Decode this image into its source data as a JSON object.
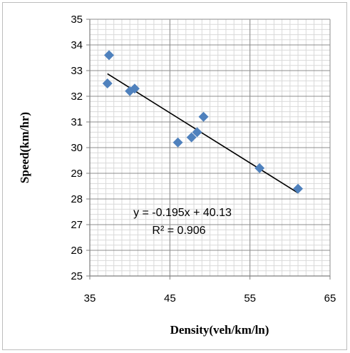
{
  "chart_data": {
    "type": "scatter",
    "title": "",
    "xlabel": "Density(veh/km/ln)",
    "ylabel": "Speed(km/hr)",
    "xlim": [
      35,
      65
    ],
    "ylim": [
      25,
      35
    ],
    "xticks": [
      35,
      45,
      55,
      65
    ],
    "yticks": [
      25,
      26,
      27,
      28,
      29,
      30,
      31,
      32,
      33,
      34,
      35
    ],
    "grid": true,
    "legend": "none",
    "marker_color": "#4f81bd",
    "trendline_color": "#000000",
    "series": [
      {
        "points": [
          {
            "x": 37.4,
            "y": 33.6
          },
          {
            "x": 37.2,
            "y": 32.5
          },
          {
            "x": 40.0,
            "y": 32.2
          },
          {
            "x": 40.6,
            "y": 32.3
          },
          {
            "x": 46.0,
            "y": 30.2
          },
          {
            "x": 47.7,
            "y": 30.4
          },
          {
            "x": 48.4,
            "y": 30.6
          },
          {
            "x": 49.2,
            "y": 31.2
          },
          {
            "x": 56.2,
            "y": 29.2
          },
          {
            "x": 61.0,
            "y": 28.4
          }
        ]
      }
    ],
    "trendline": {
      "slope": -0.195,
      "intercept": 40.13,
      "x_range": [
        37.2,
        61.0
      ],
      "equation_label": "y = -0.195x + 40.13",
      "r2_label": "R² = 0.906"
    }
  }
}
